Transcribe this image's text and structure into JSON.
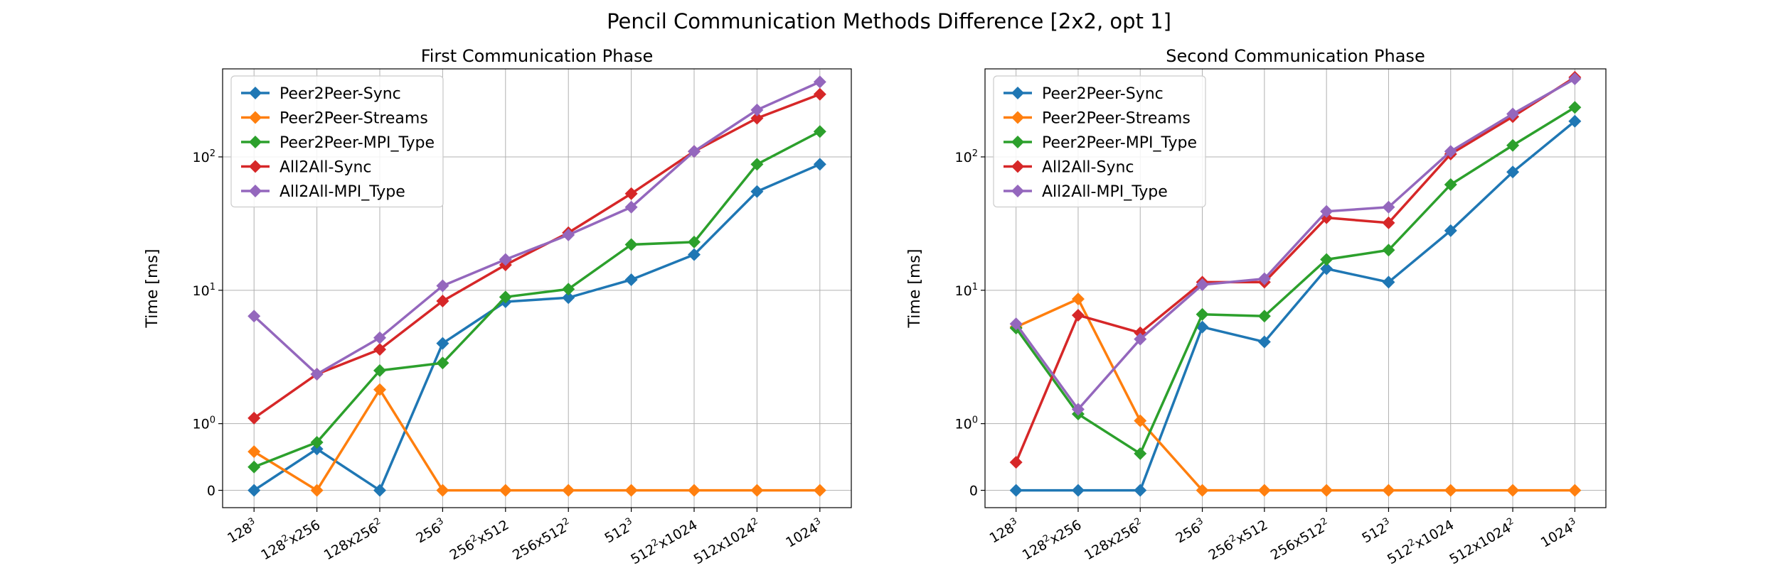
{
  "figure": {
    "title": "Pencil Communication Methods Difference [2x2, opt 1]"
  },
  "chart_data": [
    {
      "type": "line",
      "title": "First Communication Phase",
      "xlabel": "",
      "ylabel": "Time [ms]",
      "yscale": "symlog",
      "yticks": [
        "0",
        "10^0",
        "10^1",
        "10^2"
      ],
      "grid": true,
      "legend": "upper-left",
      "categories": [
        "128^3",
        "128^2x256",
        "128x256^2",
        "256^3",
        "256^2x512",
        "256x512^2",
        "512^3",
        "512^2x1024",
        "512x1024^2",
        "1024^3"
      ],
      "series": [
        {
          "name": "Peer2Peer-Sync",
          "color": "#1f77b4",
          "values": [
            0,
            0.62,
            0,
            4.0,
            8.2,
            8.8,
            12.0,
            18.5,
            55,
            88
          ]
        },
        {
          "name": "Peer2Peer-Streams",
          "color": "#ff7f0e",
          "values": [
            0.58,
            0,
            1.8,
            0,
            0,
            0,
            0,
            0,
            0,
            0
          ]
        },
        {
          "name": "Peer2Peer-MPI_Type",
          "color": "#2ca02c",
          "values": [
            0.35,
            0.72,
            2.5,
            2.85,
            8.9,
            10.2,
            22,
            23,
            88,
            155
          ]
        },
        {
          "name": "All2All-Sync",
          "color": "#d62728",
          "values": [
            1.1,
            2.35,
            3.6,
            8.3,
            15.5,
            27,
            53,
            110,
            195,
            295
          ]
        },
        {
          "name": "All2All-MPI_Type",
          "color": "#9467bd",
          "values": [
            6.4,
            2.35,
            4.4,
            10.8,
            17,
            26,
            42,
            110,
            225,
            365
          ]
        }
      ]
    },
    {
      "type": "line",
      "title": "Second Communication Phase",
      "xlabel": "",
      "ylabel": "Time [ms]",
      "yscale": "symlog",
      "yticks": [
        "0",
        "10^0",
        "10^1",
        "10^2"
      ],
      "grid": true,
      "legend": "upper-left",
      "categories": [
        "128^3",
        "128^2x256",
        "128x256^2",
        "256^3",
        "256^2x512",
        "256x512^2",
        "512^3",
        "512^2x1024",
        "512x1024^2",
        "1024^3"
      ],
      "series": [
        {
          "name": "Peer2Peer-Sync",
          "color": "#1f77b4",
          "values": [
            0,
            0,
            0,
            5.3,
            4.1,
            14.5,
            11.5,
            28,
            77,
            185
          ]
        },
        {
          "name": "Peer2Peer-Streams",
          "color": "#ff7f0e",
          "values": [
            5.3,
            8.6,
            1.05,
            0,
            0,
            0,
            0,
            0,
            0,
            0
          ]
        },
        {
          "name": "Peer2Peer-MPI_Type",
          "color": "#2ca02c",
          "values": [
            5.2,
            1.18,
            0.55,
            6.6,
            6.4,
            17,
            20,
            62,
            122,
            235
          ]
        },
        {
          "name": "All2All-Sync",
          "color": "#d62728",
          "values": [
            0.42,
            6.5,
            4.8,
            11.5,
            11.5,
            35,
            32,
            105,
            200,
            395
          ]
        },
        {
          "name": "All2All-MPI_Type",
          "color": "#9467bd",
          "values": [
            5.6,
            1.28,
            4.3,
            11.0,
            12.2,
            39,
            42,
            110,
            210,
            385
          ]
        }
      ]
    }
  ]
}
